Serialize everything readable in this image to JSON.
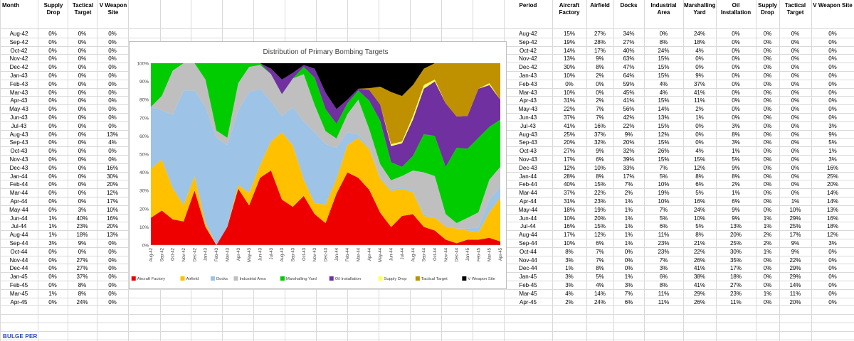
{
  "left_table": {
    "headers": [
      "Month",
      "Supply Drop",
      "Tactical Target",
      "V Weapon Site"
    ],
    "rows": [
      [
        "Aug-42",
        "0%",
        "0%",
        "0%"
      ],
      [
        "Sep-42",
        "0%",
        "0%",
        "0%"
      ],
      [
        "Oct-42",
        "0%",
        "0%",
        "0%"
      ],
      [
        "Nov-42",
        "0%",
        "0%",
        "0%"
      ],
      [
        "Dec-42",
        "0%",
        "0%",
        "0%"
      ],
      [
        "Jan-43",
        "0%",
        "0%",
        "0%"
      ],
      [
        "Feb-43",
        "0%",
        "0%",
        "0%"
      ],
      [
        "Mar-43",
        "0%",
        "0%",
        "0%"
      ],
      [
        "Apr-43",
        "0%",
        "0%",
        "0%"
      ],
      [
        "May-43",
        "0%",
        "0%",
        "0%"
      ],
      [
        "Jun-43",
        "0%",
        "0%",
        "0%"
      ],
      [
        "Jul-43",
        "0%",
        "0%",
        "0%"
      ],
      [
        "Aug-43",
        "0%",
        "0%",
        "13%"
      ],
      [
        "Sep-43",
        "0%",
        "0%",
        "4%"
      ],
      [
        "Oct-43",
        "0%",
        "0%",
        "0%"
      ],
      [
        "Nov-43",
        "0%",
        "0%",
        "0%"
      ],
      [
        "Dec-43",
        "0%",
        "0%",
        "16%"
      ],
      [
        "Jan-44",
        "0%",
        "0%",
        "30%"
      ],
      [
        "Feb-44",
        "0%",
        "0%",
        "20%"
      ],
      [
        "Mar-44",
        "0%",
        "0%",
        "12%"
      ],
      [
        "Apr-44",
        "0%",
        "0%",
        "17%"
      ],
      [
        "May-44",
        "0%",
        "3%",
        "10%"
      ],
      [
        "Jun-44",
        "1%",
        "40%",
        "16%"
      ],
      [
        "Jul-44",
        "1%",
        "23%",
        "20%"
      ],
      [
        "Aug-44",
        "1%",
        "18%",
        "13%"
      ],
      [
        "Sep-44",
        "3%",
        "9%",
        "0%"
      ],
      [
        "Oct-44",
        "0%",
        "0%",
        "0%"
      ],
      [
        "Nov-44",
        "0%",
        "27%",
        "0%"
      ],
      [
        "Dec-44",
        "0%",
        "27%",
        "0%"
      ],
      [
        "Jan-45",
        "0%",
        "37%",
        "0%"
      ],
      [
        "Feb-45",
        "0%",
        "8%",
        "0%"
      ],
      [
        "Mar-45",
        "1%",
        "8%",
        "0%"
      ],
      [
        "Apr-45",
        "0%",
        "24%",
        "0%"
      ]
    ]
  },
  "right_table": {
    "headers": [
      "Period",
      "Aircraft Factory",
      "Airfield",
      "Docks",
      "Industrial Area",
      "Marshalling Yard",
      "Oil Installation",
      "Supply Drop",
      "Tactical Target",
      "V Weapon Site"
    ],
    "rows": [
      [
        "Aug-42",
        "15%",
        "27%",
        "34%",
        "0%",
        "24%",
        "0%",
        "0%",
        "0%",
        "0%"
      ],
      [
        "Sep-42",
        "19%",
        "28%",
        "27%",
        "8%",
        "18%",
        "0%",
        "0%",
        "0%",
        "0%"
      ],
      [
        "Oct-42",
        "14%",
        "17%",
        "40%",
        "24%",
        "4%",
        "0%",
        "0%",
        "0%",
        "0%"
      ],
      [
        "Nov-42",
        "13%",
        "9%",
        "63%",
        "15%",
        "0%",
        "0%",
        "0%",
        "0%",
        "0%"
      ],
      [
        "Dec-42",
        "30%",
        "8%",
        "47%",
        "15%",
        "0%",
        "0%",
        "0%",
        "0%",
        "0%"
      ],
      [
        "Jan-43",
        "10%",
        "2%",
        "64%",
        "15%",
        "9%",
        "0%",
        "0%",
        "0%",
        "0%"
      ],
      [
        "Feb-43",
        "0%",
        "0%",
        "59%",
        "4%",
        "37%",
        "0%",
        "0%",
        "0%",
        "0%"
      ],
      [
        "Mar-43",
        "10%",
        "0%",
        "45%",
        "4%",
        "41%",
        "0%",
        "0%",
        "0%",
        "0%"
      ],
      [
        "Apr-43",
        "31%",
        "2%",
        "41%",
        "15%",
        "11%",
        "0%",
        "0%",
        "0%",
        "0%"
      ],
      [
        "May-43",
        "22%",
        "7%",
        "56%",
        "14%",
        "2%",
        "0%",
        "0%",
        "0%",
        "0%"
      ],
      [
        "Jun-43",
        "37%",
        "7%",
        "42%",
        "13%",
        "1%",
        "0%",
        "0%",
        "0%",
        "0%"
      ],
      [
        "Jul-43",
        "41%",
        "16%",
        "22%",
        "15%",
        "0%",
        "3%",
        "0%",
        "0%",
        "3%"
      ],
      [
        "Aug-43",
        "25%",
        "37%",
        "9%",
        "12%",
        "0%",
        "8%",
        "0%",
        "0%",
        "9%"
      ],
      [
        "Sep-43",
        "20%",
        "32%",
        "20%",
        "15%",
        "0%",
        "3%",
        "0%",
        "0%",
        "5%"
      ],
      [
        "Oct-43",
        "27%",
        "9%",
        "32%",
        "26%",
        "4%",
        "1%",
        "0%",
        "0%",
        "1%"
      ],
      [
        "Nov-43",
        "17%",
        "6%",
        "39%",
        "15%",
        "15%",
        "5%",
        "0%",
        "0%",
        "3%"
      ],
      [
        "Dec-43",
        "12%",
        "10%",
        "33%",
        "7%",
        "12%",
        "9%",
        "0%",
        "0%",
        "16%"
      ],
      [
        "Jan-44",
        "28%",
        "8%",
        "17%",
        "5%",
        "8%",
        "8%",
        "0%",
        "0%",
        "25%"
      ],
      [
        "Feb-44",
        "40%",
        "15%",
        "7%",
        "10%",
        "6%",
        "2%",
        "0%",
        "0%",
        "20%"
      ],
      [
        "Mar-44",
        "37%",
        "22%",
        "2%",
        "19%",
        "5%",
        "1%",
        "0%",
        "0%",
        "14%"
      ],
      [
        "Apr-44",
        "31%",
        "23%",
        "1%",
        "10%",
        "16%",
        "6%",
        "0%",
        "1%",
        "14%"
      ],
      [
        "May-44",
        "18%",
        "19%",
        "1%",
        "7%",
        "24%",
        "9%",
        "0%",
        "10%",
        "13%"
      ],
      [
        "Jun-44",
        "10%",
        "20%",
        "1%",
        "5%",
        "10%",
        "9%",
        "1%",
        "29%",
        "16%"
      ],
      [
        "Jul-44",
        "16%",
        "15%",
        "1%",
        "6%",
        "5%",
        "13%",
        "1%",
        "25%",
        "18%"
      ],
      [
        "Aug-44",
        "17%",
        "12%",
        "1%",
        "11%",
        "8%",
        "20%",
        "2%",
        "17%",
        "12%"
      ],
      [
        "Sep-44",
        "10%",
        "6%",
        "1%",
        "23%",
        "21%",
        "25%",
        "2%",
        "9%",
        "3%"
      ],
      [
        "Oct-44",
        "8%",
        "7%",
        "0%",
        "23%",
        "22%",
        "30%",
        "1%",
        "9%",
        "0%"
      ],
      [
        "Nov-44",
        "3%",
        "7%",
        "0%",
        "7%",
        "26%",
        "35%",
        "0%",
        "22%",
        "0%"
      ],
      [
        "Dec-44",
        "1%",
        "8%",
        "0%",
        "3%",
        "41%",
        "17%",
        "0%",
        "29%",
        "0%"
      ],
      [
        "Jan-45",
        "3%",
        "5%",
        "1%",
        "6%",
        "38%",
        "18%",
        "0%",
        "29%",
        "0%"
      ],
      [
        "Feb-45",
        "3%",
        "4%",
        "3%",
        "8%",
        "41%",
        "27%",
        "0%",
        "14%",
        "0%"
      ],
      [
        "Mar-45",
        "4%",
        "14%",
        "7%",
        "11%",
        "29%",
        "23%",
        "1%",
        "11%",
        "0%"
      ],
      [
        "Apr-45",
        "2%",
        "24%",
        "6%",
        "11%",
        "26%",
        "11%",
        "0%",
        "20%",
        "0%"
      ]
    ]
  },
  "footer_note": "BULGE PER",
  "chart_data": {
    "type": "area",
    "stacked": true,
    "percent": true,
    "title": "Distribution of Primary Bombing Targets",
    "legend_position": "bottom",
    "yticks": [
      "0%",
      "10%",
      "20%",
      "30%",
      "40%",
      "50%",
      "60%",
      "70%",
      "80%",
      "90%",
      "100%"
    ],
    "ylim": [
      0,
      100
    ],
    "x": [
      "Aug-42",
      "Sep-42",
      "Oct-42",
      "Nov-42",
      "Dec-42",
      "Jan-43",
      "Feb-43",
      "Mar-43",
      "Apr-43",
      "May-43",
      "Jun-43",
      "Jul-43",
      "Aug-43",
      "Sep-43",
      "Oct-43",
      "Nov-43",
      "Dec-43",
      "Jan-44",
      "Feb-44",
      "Mar-44",
      "Apr-44",
      "May-44",
      "Jun-44",
      "Jul-44",
      "Aug-44",
      "Sep-44",
      "Oct-44",
      "Nov-44",
      "Dec-44",
      "Jan-45",
      "Feb-45",
      "Mar-45",
      "Apr-45"
    ],
    "series": [
      {
        "name": "Aircraft Factory",
        "color": "#ee0000",
        "values": [
          15,
          19,
          14,
          13,
          30,
          10,
          0,
          10,
          31,
          22,
          37,
          41,
          25,
          20,
          27,
          17,
          12,
          28,
          40,
          37,
          31,
          18,
          10,
          16,
          17,
          10,
          8,
          3,
          1,
          3,
          3,
          4,
          2
        ]
      },
      {
        "name": "Airfield",
        "color": "#ffc000",
        "values": [
          27,
          28,
          17,
          9,
          8,
          2,
          0,
          0,
          2,
          7,
          7,
          16,
          37,
          32,
          9,
          6,
          10,
          8,
          15,
          22,
          23,
          19,
          20,
          15,
          12,
          6,
          7,
          7,
          8,
          5,
          4,
          14,
          24
        ]
      },
      {
        "name": "Docks",
        "color": "#9dc3e6",
        "values": [
          34,
          27,
          40,
          63,
          47,
          64,
          59,
          45,
          41,
          56,
          42,
          22,
          9,
          20,
          32,
          39,
          33,
          17,
          7,
          2,
          1,
          1,
          1,
          1,
          1,
          1,
          0,
          0,
          0,
          1,
          3,
          7,
          6
        ]
      },
      {
        "name": "Industrial Area",
        "color": "#bfbfbf",
        "values": [
          0,
          8,
          24,
          15,
          15,
          15,
          4,
          4,
          15,
          14,
          13,
          15,
          12,
          15,
          26,
          15,
          7,
          5,
          10,
          19,
          10,
          7,
          5,
          6,
          11,
          23,
          23,
          7,
          3,
          6,
          8,
          11,
          11
        ]
      },
      {
        "name": "Marshalling Yard",
        "color": "#00cc00",
        "values": [
          24,
          18,
          4,
          0,
          0,
          9,
          37,
          41,
          11,
          2,
          1,
          0,
          0,
          0,
          4,
          15,
          12,
          8,
          6,
          5,
          16,
          24,
          10,
          5,
          8,
          21,
          22,
          26,
          41,
          38,
          41,
          29,
          26
        ]
      },
      {
        "name": "Oil Installation",
        "color": "#7030a0",
        "values": [
          0,
          0,
          0,
          0,
          0,
          0,
          0,
          0,
          0,
          0,
          0,
          3,
          8,
          3,
          1,
          5,
          9,
          8,
          2,
          1,
          6,
          9,
          9,
          13,
          20,
          25,
          30,
          35,
          17,
          18,
          27,
          23,
          11
        ]
      },
      {
        "name": "Supply Drop",
        "color": "#ffff66",
        "values": [
          0,
          0,
          0,
          0,
          0,
          0,
          0,
          0,
          0,
          0,
          0,
          0,
          0,
          0,
          0,
          0,
          0,
          0,
          0,
          0,
          0,
          0,
          1,
          1,
          2,
          2,
          1,
          0,
          0,
          0,
          0,
          1,
          0
        ]
      },
      {
        "name": "Tactical Target",
        "color": "#bf9000",
        "values": [
          0,
          0,
          0,
          0,
          0,
          0,
          0,
          0,
          0,
          0,
          0,
          0,
          0,
          0,
          0,
          0,
          0,
          0,
          0,
          0,
          1,
          10,
          29,
          25,
          17,
          9,
          9,
          22,
          29,
          29,
          14,
          11,
          20
        ]
      },
      {
        "name": "V Weapon Site",
        "color": "#000000",
        "values": [
          0,
          0,
          0,
          0,
          0,
          0,
          0,
          0,
          0,
          0,
          0,
          3,
          9,
          5,
          1,
          3,
          16,
          25,
          20,
          14,
          14,
          13,
          16,
          18,
          12,
          3,
          0,
          0,
          0,
          0,
          0,
          0,
          0
        ]
      }
    ]
  }
}
